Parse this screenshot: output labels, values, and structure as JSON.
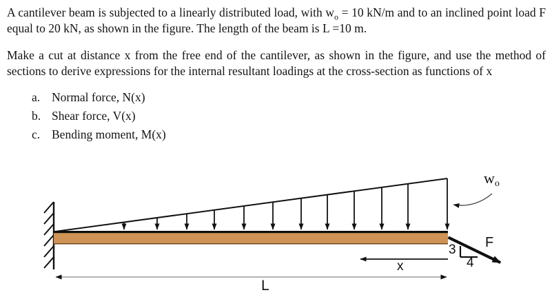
{
  "document": {
    "paragraph1": {
      "before_sub": "A cantilever beam is subjected to a linearly distributed load, with w",
      "sub": "o",
      "after_sub": " = 10 kN/m and to an inclined point load F equal to 20 kN, as shown in the figure.  The length of the beam is L =10 m."
    },
    "paragraph2": "Make a cut at distance x from the free end of the cantilever, as shown in the figure, and use the method of sections to derive expressions for the internal resultant loadings at the cross-section as functions of x",
    "list": {
      "items": [
        {
          "marker": "a.",
          "text": "Normal force, N(x)"
        },
        {
          "marker": "b.",
          "text": "Shear force, V(x)"
        },
        {
          "marker": "c.",
          "text": "Bending moment, M(x)"
        }
      ]
    }
  },
  "figure": {
    "labels": {
      "w0_base": "w",
      "w0_sub": "o",
      "force": "F",
      "slope_vertical": "3",
      "slope_horizontal": "4",
      "cut_distance": "x",
      "beam_length": "L"
    },
    "colors": {
      "beam_fill": "#CF9355",
      "beam_top_edge": "#0d0d0d",
      "beam_bottom_edge": "#6e4a1e",
      "line": "#111111",
      "dim_line": "#9c9c9c",
      "pointer_line": "#444444"
    }
  }
}
